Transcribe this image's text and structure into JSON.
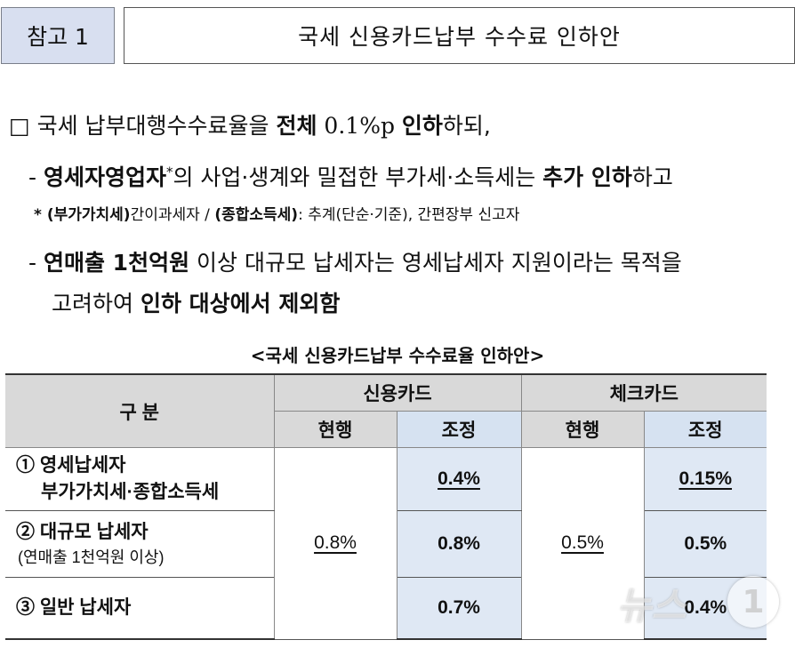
{
  "header": {
    "ref_label": "참고 1",
    "title": "국세 신용카드납부 수수료 인하안"
  },
  "body": {
    "line1": {
      "bullet": "□",
      "pre": " 국세 납부대행수수료율을 ",
      "b1": "전체",
      "mid": " 0.1%p ",
      "b2": "인하",
      "post": "하되,"
    },
    "line2": {
      "dash": "- ",
      "b1": "영세자영업자",
      "star": "*",
      "mid": "의 사업·생계와 밀접한 부가세·소득세는 ",
      "b2": "추가 인하",
      "post": "하고"
    },
    "line3": {
      "star": "* ",
      "b1": "(부가가치세)",
      "mid": "간이과세자 / ",
      "b2": "(종합소득세)",
      "post": ": 추계(단순·기준), 간편장부 신고자"
    },
    "line4": {
      "dash": "- ",
      "b1": "연매출 1천억원",
      "post": " 이상 대규모 납세자는 영세납세자 지원이라는 목적을"
    },
    "line5": {
      "pre": "고려하여 ",
      "b1": "인하 대상에서 제외함"
    }
  },
  "table": {
    "caption": "<국세 신용카드납부 수수료율 인하안>",
    "header": {
      "category": "구 분",
      "credit": "신용카드",
      "check": "체크카드",
      "current": "현행",
      "adjusted": "조정"
    },
    "rows": [
      {
        "label": "① 영세납세자",
        "sub": "부가가치세·종합소득세",
        "credit_adj": "0.4%",
        "check_adj": "0.15%"
      },
      {
        "label": "② 대규모 납세자",
        "sub": "(연매출 1천억원 이상)",
        "credit_adj": "0.8%",
        "check_adj": "0.5%"
      },
      {
        "label": "③ 일반 납세자",
        "sub": "",
        "credit_adj": "0.7%",
        "check_adj": "0.4%"
      }
    ],
    "credit_current": "0.8%",
    "check_current": "0.5%"
  },
  "watermark": {
    "text": "뉴스",
    "mark": "1"
  }
}
